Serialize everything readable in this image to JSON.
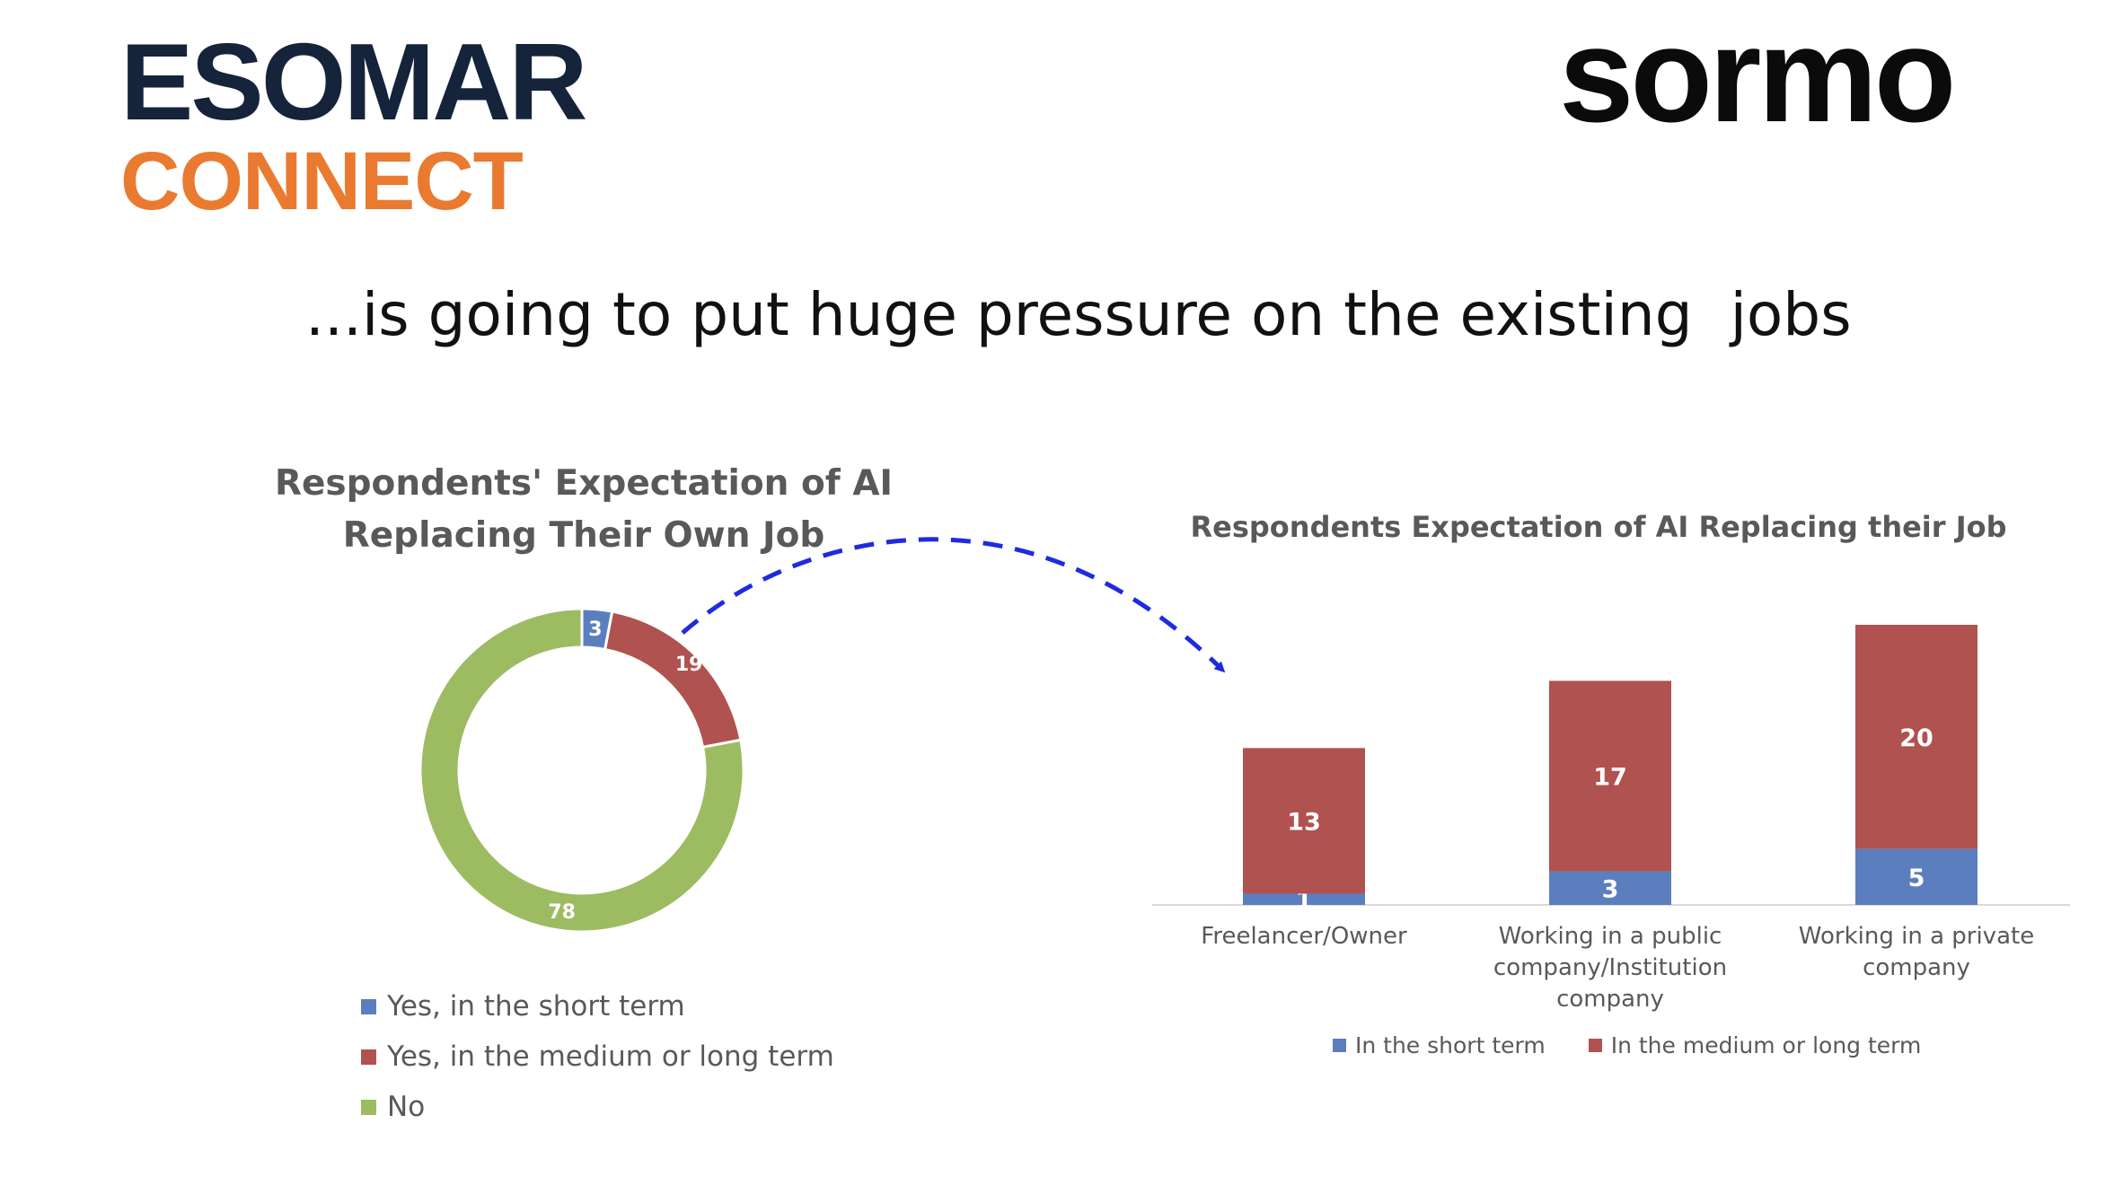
{
  "logos": {
    "esomar_line1": "ESOMAR",
    "esomar_line2": "CONNECT",
    "sormo": "sormo"
  },
  "headline": "...is going to put huge pressure on the existing  jobs",
  "colors": {
    "short_term": "#5b7fbe",
    "medium_long": "#b0524f",
    "no": "#9dbb61",
    "title": "#595959",
    "arrow": "#1e2be0",
    "esomar_navy": "#15233b",
    "esomar_orange": "#ea7a30"
  },
  "chart_data": [
    {
      "type": "pie",
      "variant": "donut",
      "title": "Respondents' Expectation of AI Replacing Their Own Job",
      "title_lines": [
        "Respondents' Expectation of AI",
        "Replacing Their Own Job"
      ],
      "categories": [
        "Yes, in the short term",
        "Yes, in the medium or long term",
        "No"
      ],
      "values": [
        3,
        19,
        78
      ],
      "legend_position": "bottom"
    },
    {
      "type": "bar",
      "stacked": true,
      "title": "Respondents Expectation of AI Replacing their Job",
      "categories": [
        "Freelancer/Owner",
        "Working in a public company/Institution company",
        "Working in a private company"
      ],
      "category_lines": [
        [
          "Freelancer/Owner"
        ],
        [
          "Working in a public",
          "company/Institution",
          "company"
        ],
        [
          "Working in a private",
          "company"
        ]
      ],
      "series": [
        {
          "name": "In the short term",
          "values": [
            1,
            3,
            5
          ]
        },
        {
          "name": "In the medium or long term",
          "values": [
            13,
            17,
            20
          ]
        }
      ],
      "ylim": [
        0,
        25
      ],
      "legend_position": "bottom",
      "grid": false
    }
  ]
}
